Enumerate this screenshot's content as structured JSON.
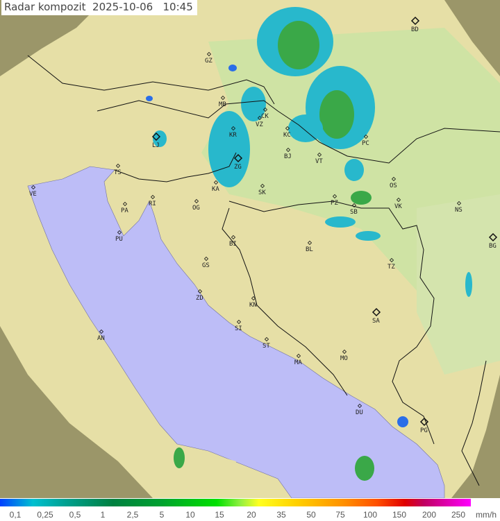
{
  "title": "Radar kompozit  2025-10-06   10:45",
  "legend": {
    "labels": [
      "0,1",
      "0,25",
      "0,5",
      "1",
      "2,5",
      "5",
      "10",
      "15",
      "20",
      "35",
      "50",
      "75",
      "100",
      "150",
      "200",
      "250"
    ],
    "unit": "mm/h"
  },
  "colors": {
    "sea": "#bdbdf7",
    "land": "#e6dfa6",
    "plain": "#cfe3a4",
    "out_of_range": "#8d8a5e",
    "echo_light": "#28b8cc",
    "echo_blue": "#2a6ee8",
    "echo_green": "#3aa848",
    "border": "#111111"
  },
  "cities": [
    {
      "code": "GZ"
    },
    {
      "code": "BD",
      "major": true
    },
    {
      "code": "MB"
    },
    {
      "code": "CK"
    },
    {
      "code": "VZ"
    },
    {
      "code": "KR"
    },
    {
      "code": "KC"
    },
    {
      "code": "PC"
    },
    {
      "code": "LJ",
      "major": true
    },
    {
      "code": "ZG",
      "major": true
    },
    {
      "code": "BJ"
    },
    {
      "code": "VT"
    },
    {
      "code": "TS"
    },
    {
      "code": "KA"
    },
    {
      "code": "SK"
    },
    {
      "code": "OS"
    },
    {
      "code": "VE"
    },
    {
      "code": "RI"
    },
    {
      "code": "PA"
    },
    {
      "code": "OG"
    },
    {
      "code": "PZ"
    },
    {
      "code": "SB"
    },
    {
      "code": "VK"
    },
    {
      "code": "NS"
    },
    {
      "code": "PU"
    },
    {
      "code": "BI"
    },
    {
      "code": "BL"
    },
    {
      "code": "BG",
      "major": true
    },
    {
      "code": "GS"
    },
    {
      "code": "TZ"
    },
    {
      "code": "ZD"
    },
    {
      "code": "KN"
    },
    {
      "code": "SA",
      "major": true
    },
    {
      "code": "SI"
    },
    {
      "code": "AN"
    },
    {
      "code": "ST"
    },
    {
      "code": "MA"
    },
    {
      "code": "MO"
    },
    {
      "code": "DU"
    },
    {
      "code": "PG",
      "major": true
    }
  ]
}
